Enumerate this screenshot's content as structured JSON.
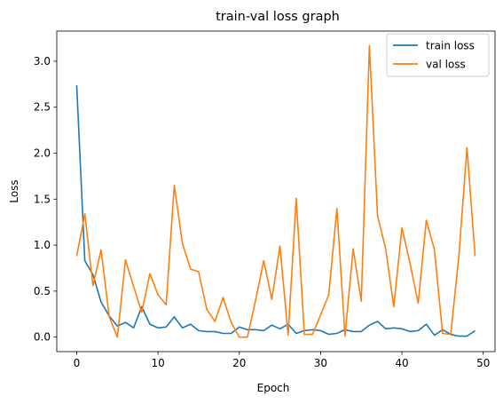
{
  "chart_data": {
    "type": "line",
    "title": "train-val loss graph",
    "xlabel": "Epoch",
    "ylabel": "Loss",
    "xlim": [
      -2.45,
      51.45
    ],
    "ylim": [
      -0.158,
      3.328
    ],
    "xticks": [
      0,
      10,
      20,
      30,
      40,
      50
    ],
    "yticks": [
      0.0,
      0.5,
      1.0,
      1.5,
      2.0,
      2.5,
      3.0
    ],
    "xtick_labels": [
      "0",
      "10",
      "20",
      "30",
      "40",
      "50"
    ],
    "ytick_labels": [
      "0.0",
      "0.5",
      "1.0",
      "1.5",
      "2.0",
      "2.5",
      "3.0"
    ],
    "grid": false,
    "legend_position": "top-right",
    "x": [
      0,
      1,
      2,
      3,
      4,
      5,
      6,
      7,
      8,
      9,
      10,
      11,
      12,
      13,
      14,
      15,
      16,
      17,
      18,
      19,
      20,
      21,
      22,
      23,
      24,
      25,
      26,
      27,
      28,
      29,
      30,
      31,
      32,
      33,
      34,
      35,
      36,
      37,
      38,
      39,
      40,
      41,
      42,
      43,
      44,
      45,
      46,
      47,
      48,
      49
    ],
    "series": [
      {
        "name": "train loss",
        "color": "#1f77b4",
        "values": [
          2.74,
          0.83,
          0.68,
          0.38,
          0.23,
          0.12,
          0.16,
          0.1,
          0.33,
          0.14,
          0.1,
          0.11,
          0.22,
          0.1,
          0.14,
          0.07,
          0.06,
          0.06,
          0.04,
          0.04,
          0.11,
          0.08,
          0.08,
          0.07,
          0.13,
          0.09,
          0.14,
          0.04,
          0.07,
          0.08,
          0.07,
          0.03,
          0.04,
          0.08,
          0.06,
          0.06,
          0.13,
          0.17,
          0.09,
          0.1,
          0.09,
          0.06,
          0.07,
          0.14,
          0.02,
          0.08,
          0.03,
          0.01,
          0.01,
          0.07
        ]
      },
      {
        "name": "val loss",
        "color": "#ff7f0e",
        "values": [
          0.88,
          1.34,
          0.56,
          0.95,
          0.22,
          0.0,
          0.84,
          0.55,
          0.27,
          0.69,
          0.46,
          0.35,
          1.65,
          1.02,
          0.74,
          0.71,
          0.3,
          0.17,
          0.43,
          0.16,
          0.0,
          0.0,
          0.4,
          0.83,
          0.41,
          0.99,
          0.02,
          1.51,
          0.03,
          0.03,
          0.24,
          0.46,
          1.4,
          0.01,
          0.96,
          0.39,
          3.17,
          1.32,
          0.96,
          0.33,
          1.19,
          0.8,
          0.37,
          1.27,
          0.95,
          0.04,
          0.03,
          0.88,
          2.06,
          0.88
        ]
      }
    ]
  }
}
